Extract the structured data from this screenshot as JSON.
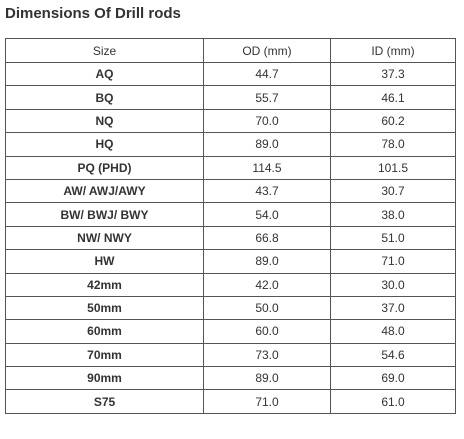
{
  "title": "Dimensions Of Drill rods",
  "table": {
    "headers": [
      "Size",
      "OD (mm)",
      "ID (mm)"
    ],
    "rows": [
      {
        "size": "AQ",
        "od": "44.7",
        "id": "37.3"
      },
      {
        "size": "BQ",
        "od": "55.7",
        "id": "46.1"
      },
      {
        "size": "NQ",
        "od": "70.0",
        "id": "60.2"
      },
      {
        "size": "HQ",
        "od": "89.0",
        "id": "78.0"
      },
      {
        "size": "PQ (PHD)",
        "od": "114.5",
        "id": "101.5"
      },
      {
        "size": "AW/ AWJ/AWY",
        "od": "43.7",
        "id": "30.7"
      },
      {
        "size": "BW/ BWJ/ BWY",
        "od": "54.0",
        "id": "38.0"
      },
      {
        "size": "NW/ NWY",
        "od": "66.8",
        "id": "51.0"
      },
      {
        "size": "HW",
        "od": "89.0",
        "id": "71.0"
      },
      {
        "size": "42mm",
        "od": "42.0",
        "id": "30.0"
      },
      {
        "size": "50mm",
        "od": "50.0",
        "id": "37.0"
      },
      {
        "size": "60mm",
        "od": "60.0",
        "id": "48.0"
      },
      {
        "size": "70mm",
        "od": "73.0",
        "id": "54.6"
      },
      {
        "size": "90mm",
        "od": "89.0",
        "id": "69.0"
      },
      {
        "size": "S75",
        "od": "71.0",
        "id": "61.0"
      }
    ]
  }
}
